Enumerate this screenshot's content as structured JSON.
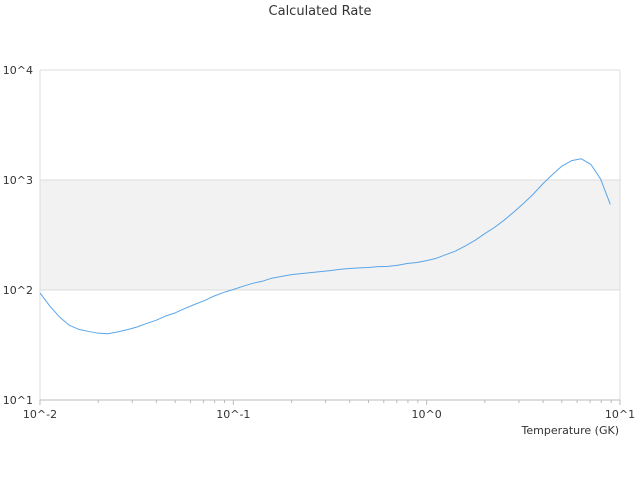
{
  "chart_data": {
    "type": "line",
    "title": "Calculated Rate",
    "xlabel": "Temperature (GK)",
    "ylabel": "",
    "xscale": "log",
    "yscale": "log",
    "xlim": [
      0.01,
      10
    ],
    "ylim": [
      10,
      10000
    ],
    "x_tick_labels": [
      "10^-2",
      "10^-1",
      "10^0",
      "10^1"
    ],
    "y_tick_labels": [
      "10^1",
      "10^2",
      "10^3",
      "10^4"
    ],
    "grid": true,
    "shaded_band": [
      100,
      1000
    ],
    "series": [
      {
        "color": "#5aa5e8",
        "x": [
          0.01,
          0.0112,
          0.0126,
          0.0141,
          0.0158,
          0.0178,
          0.02,
          0.0224,
          0.0251,
          0.0282,
          0.0316,
          0.0355,
          0.0398,
          0.0447,
          0.0501,
          0.0562,
          0.0631,
          0.0708,
          0.0794,
          0.0891,
          0.1,
          0.112,
          0.126,
          0.141,
          0.158,
          0.178,
          0.2,
          0.224,
          0.251,
          0.282,
          0.316,
          0.355,
          0.398,
          0.447,
          0.501,
          0.562,
          0.631,
          0.708,
          0.794,
          0.891,
          1.0,
          1.12,
          1.26,
          1.41,
          1.58,
          1.78,
          2.0,
          2.24,
          2.51,
          2.82,
          3.16,
          3.55,
          3.98,
          4.47,
          5.01,
          5.62,
          6.31,
          7.08,
          7.94,
          8.91
        ],
        "y": [
          94,
          72,
          57,
          48,
          44,
          42,
          40.5,
          40,
          41.5,
          43.5,
          46,
          49.5,
          53,
          58,
          62,
          68,
          74,
          80,
          88,
          95,
          101,
          108,
          115,
          120,
          128,
          133,
          138,
          141,
          144,
          147,
          150,
          154,
          157,
          159,
          160,
          163,
          164,
          168,
          174,
          178,
          185,
          194,
          210,
          226,
          251,
          283,
          326,
          370,
          430,
          510,
          610,
          740,
          920,
          1120,
          1340,
          1500,
          1560,
          1380,
          1020,
          600
        ]
      }
    ]
  }
}
